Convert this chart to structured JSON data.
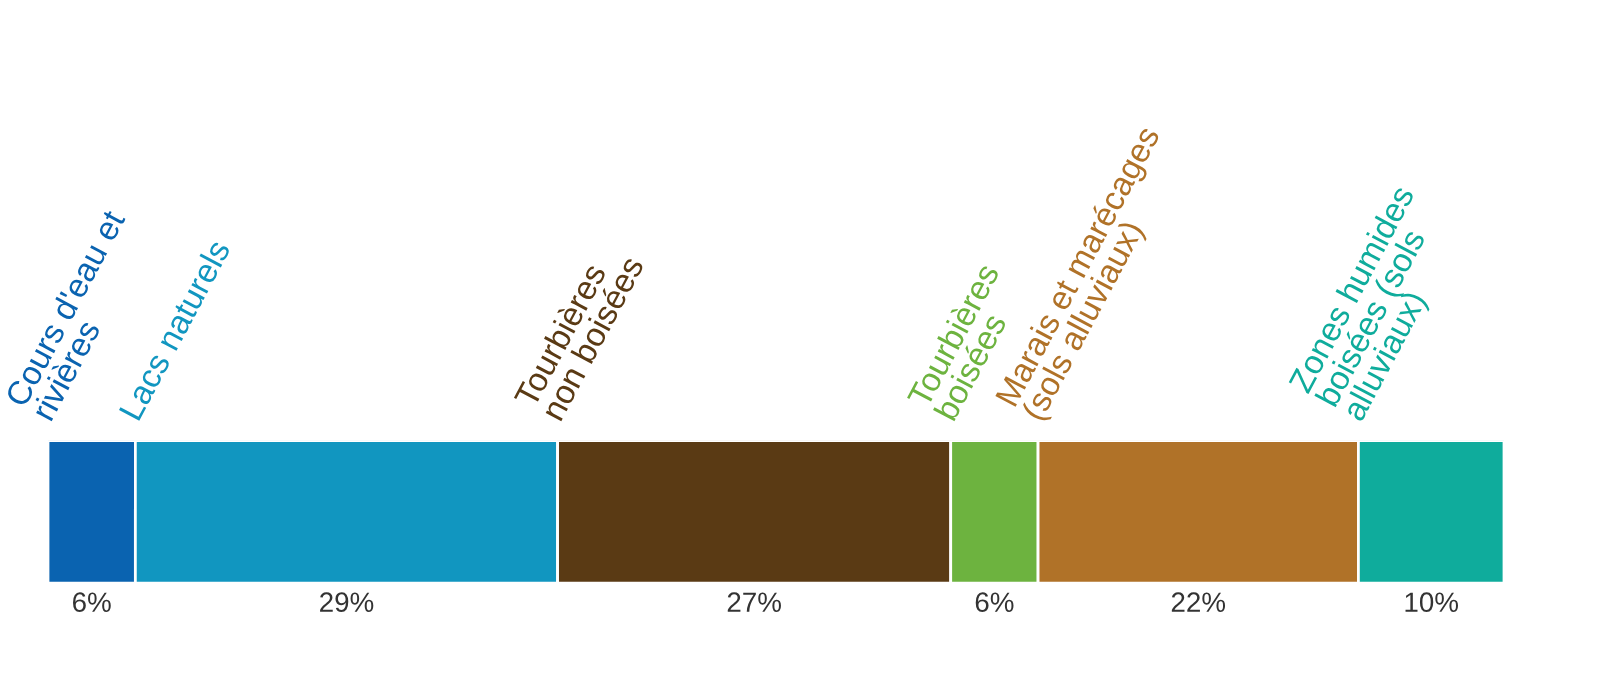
{
  "chart_data": {
    "type": "bar",
    "orientation": "horizontal",
    "stacked": true,
    "categories": [
      null
    ],
    "tick_labels": false,
    "series": [
      {
        "name": "Cours d'eau et\nrivières",
        "color": "#0a63b0",
        "values": [
          6
        ],
        "value_labels": [
          "6%"
        ]
      },
      {
        "name": "Lacs naturels",
        "color": "#1196c0",
        "values": [
          29
        ],
        "value_labels": [
          "29%"
        ]
      },
      {
        "name": "Tourbières\nnon boisées",
        "color": "#5a3a14",
        "values": [
          27
        ],
        "value_labels": [
          "27%"
        ]
      },
      {
        "name": "Tourbières\nboisées",
        "color": "#6db33f",
        "values": [
          6
        ],
        "value_labels": [
          "6%"
        ]
      },
      {
        "name": "Marais et marécages\n(sols alluviaux)",
        "color": "#b07228",
        "values": [
          22
        ],
        "value_labels": [
          "22%"
        ]
      },
      {
        "name": "Zones humides\nboisées (sols\nalluviaux)",
        "color": "#0fac9c",
        "values": [
          10
        ],
        "value_labels": [
          "10%"
        ]
      }
    ]
  }
}
